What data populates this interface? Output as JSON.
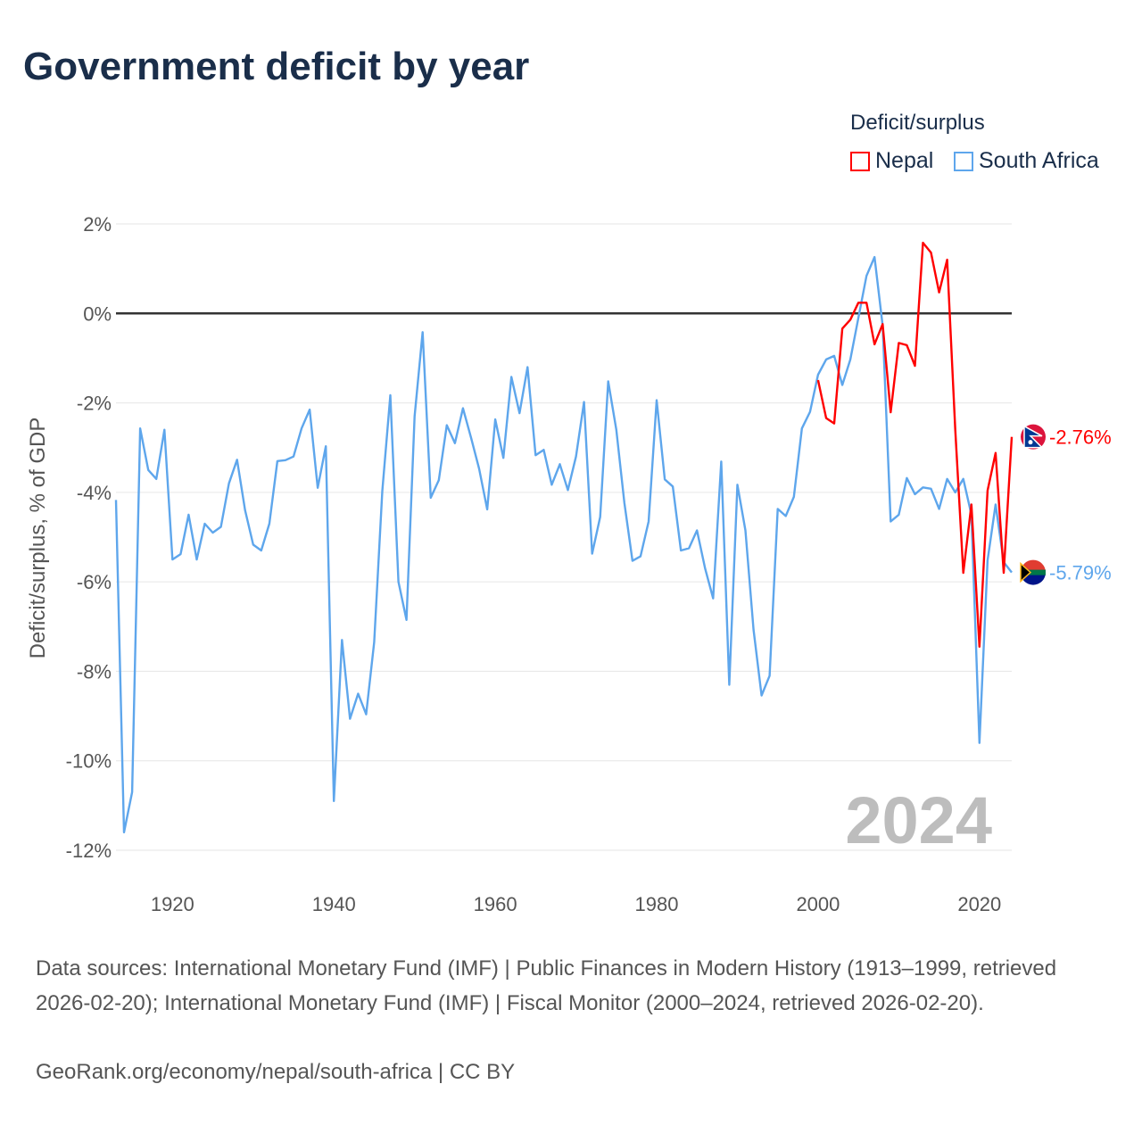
{
  "title": "Government deficit by year",
  "legend": {
    "title": "Deficit/surplus",
    "items": [
      {
        "label": "Nepal",
        "color": "#ff0000"
      },
      {
        "label": "South Africa",
        "color": "#5ea6ec"
      }
    ]
  },
  "chart_data": {
    "type": "line",
    "title": "Government deficit by year",
    "ylabel": "Deficit/surplus, % of GDP",
    "xlabel": "",
    "ylim": [
      -12,
      2
    ],
    "xlim": [
      1913,
      2024
    ],
    "yticks": [
      2,
      0,
      -2,
      -4,
      -6,
      -8,
      -10,
      -12
    ],
    "ytick_labels": [
      "2%",
      "0%",
      "-2%",
      "-4%",
      "-6%",
      "-8%",
      "-10%",
      "-12%"
    ],
    "xticks": [
      1920,
      1940,
      1960,
      1980,
      2000,
      2020
    ],
    "xtick_labels": [
      "1920",
      "1940",
      "1960",
      "1980",
      "2000",
      "2020"
    ],
    "grid": true,
    "legend_position": "top-right",
    "watermark_year": "2024",
    "series": [
      {
        "name": "Nepal",
        "color": "#ff0000",
        "start_year": 2000,
        "end_label": "-2.76%",
        "values": [
          -1.49,
          -2.34,
          -2.46,
          -0.34,
          -0.14,
          0.24,
          0.24,
          -0.69,
          -0.24,
          -2.21,
          -0.66,
          -0.71,
          -1.17,
          1.58,
          1.36,
          0.47,
          1.2,
          -2.6,
          -5.8,
          -4.27,
          -7.45,
          -3.96,
          -3.12,
          -5.8,
          -2.76
        ]
      },
      {
        "name": "South Africa",
        "color": "#5ea6ec",
        "start_year": 1913,
        "end_label": "-5.79%",
        "values": [
          -4.17,
          -11.6,
          -10.7,
          -2.57,
          -3.5,
          -3.7,
          -2.6,
          -5.5,
          -5.38,
          -4.5,
          -5.5,
          -4.7,
          -4.9,
          -4.77,
          -3.8,
          -3.27,
          -4.4,
          -5.17,
          -5.3,
          -4.7,
          -3.3,
          -3.28,
          -3.2,
          -2.57,
          -2.15,
          -3.9,
          -2.97,
          -10.9,
          -7.3,
          -9.06,
          -8.5,
          -8.96,
          -7.35,
          -3.97,
          -1.83,
          -6.0,
          -6.85,
          -2.3,
          -0.42,
          -4.12,
          -3.73,
          -2.5,
          -2.9,
          -2.12,
          -2.78,
          -3.47,
          -4.38,
          -2.37,
          -3.23,
          -1.42,
          -2.23,
          -1.2,
          -3.17,
          -3.05,
          -3.83,
          -3.37,
          -3.95,
          -3.2,
          -1.98,
          -5.37,
          -4.55,
          -1.52,
          -2.6,
          -4.23,
          -5.53,
          -5.43,
          -4.65,
          -1.94,
          -3.71,
          -3.87,
          -5.3,
          -5.25,
          -4.85,
          -5.7,
          -6.37,
          -3.31,
          -8.3,
          -3.83,
          -4.85,
          -7.07,
          -8.54,
          -8.1,
          -4.37,
          -4.53,
          -4.1,
          -2.57,
          -2.2,
          -1.37,
          -1.03,
          -0.95,
          -1.6,
          -1.03,
          -0.1,
          0.84,
          1.26,
          -0.27,
          -4.65,
          -4.5,
          -3.68,
          -4.04,
          -3.89,
          -3.92,
          -4.37,
          -3.7,
          -4.0,
          -3.7,
          -4.5,
          -9.6,
          -5.52,
          -4.27,
          -5.56,
          -5.79
        ]
      }
    ]
  },
  "footer": {
    "sources": "Data sources: International Monetary Fund (IMF) | Public Finances in Modern History (1913–1999, retrieved 2026-02-20); International Monetary Fund (IMF) | Fiscal Monitor (2000–2024, retrieved 2026-02-20).",
    "credit": "GeoRank.org/economy/nepal/south-africa | CC BY"
  }
}
